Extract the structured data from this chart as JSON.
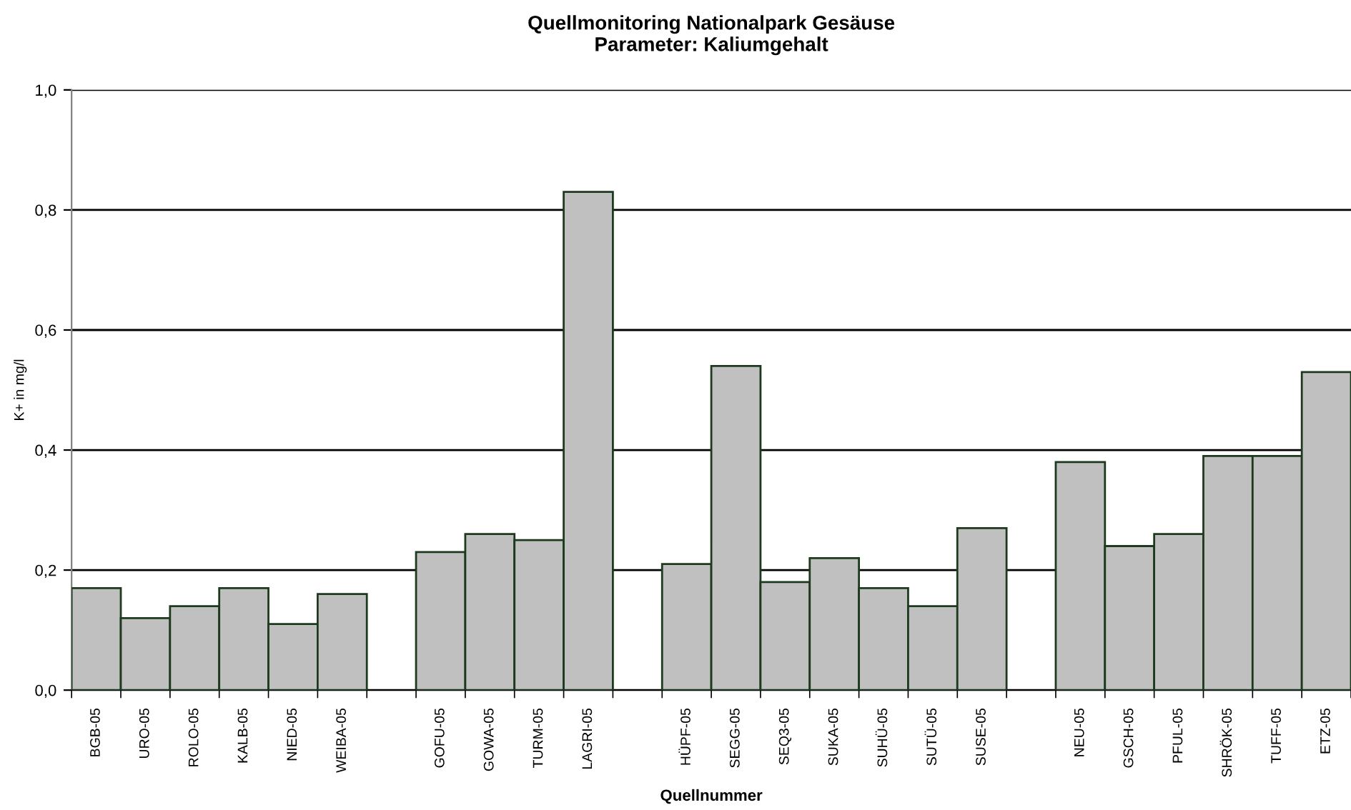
{
  "chart_data": {
    "type": "bar",
    "title": "Quellmonitoring Nationalpark Gesäuse\nParameter: Kaliumgehalt",
    "xlabel": "Quellnummer",
    "ylabel": "K+ in mg/l",
    "categories": [
      "BGB-05",
      "URO-05",
      "ROLO-05",
      "KALB-05",
      "NIED-05",
      "WEIBA-05",
      null,
      "GOFU-05",
      "GOWA-05",
      "TURM-05",
      "LAGRI-05",
      null,
      "HÜPF-05",
      "SEGG-05",
      "SEQ3-05",
      "SUKA-05",
      "SUHÜ-05",
      "SUTÜ-05",
      "SUSE-05",
      null,
      "NEU-05",
      "GSCH-05",
      "PFUL-05",
      "SHRÖK-05",
      "TUFF-05",
      "ETZ-05"
    ],
    "series": [
      {
        "color": "#c0c0c0",
        "values": [
          0.17,
          0.12,
          0.14,
          0.17,
          0.11,
          0.16,
          null,
          0.23,
          0.26,
          0.25,
          0.83,
          null,
          0.21,
          0.54,
          0.18,
          0.22,
          0.17,
          0.14,
          0.27,
          null,
          0.38,
          0.24,
          0.26,
          0.39,
          0.39,
          0.53
        ]
      }
    ],
    "ylim": [
      0,
      1.0
    ],
    "yticks": [
      {
        "value": 0,
        "label": "0,0"
      },
      {
        "value": 0.2,
        "label": "0,2"
      },
      {
        "value": 0.4,
        "label": "0,4"
      },
      {
        "value": 0.6,
        "label": "0,6"
      },
      {
        "value": 0.8,
        "label": "0,8"
      },
      {
        "value": 1.0,
        "label": "1,0"
      }
    ],
    "grid": "y",
    "legend": false
  }
}
